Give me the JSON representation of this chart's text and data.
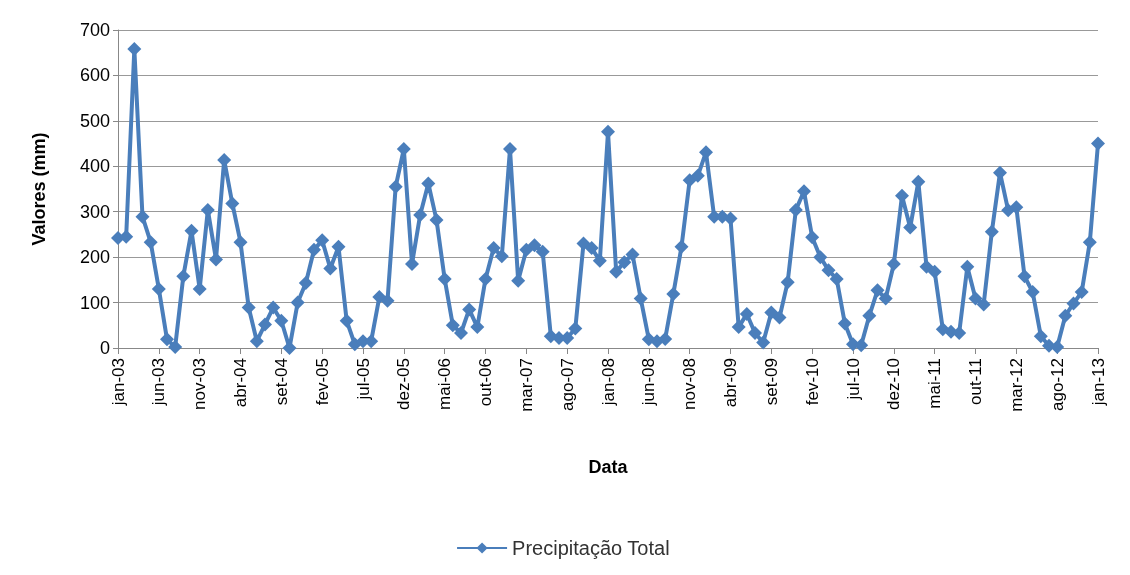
{
  "chart_data": {
    "type": "line",
    "xlabel": "Data",
    "ylabel": "Valores (mm)",
    "categories": [
      "jan-03",
      null,
      null,
      null,
      null,
      "jun-03",
      null,
      null,
      null,
      null,
      "nov-03",
      null,
      null,
      null,
      null,
      "abr-04",
      null,
      null,
      null,
      null,
      "set-04",
      null,
      null,
      null,
      null,
      "fev-05",
      null,
      null,
      null,
      null,
      "jul-05",
      null,
      null,
      null,
      null,
      "dez-05",
      null,
      null,
      null,
      null,
      "mai-06",
      null,
      null,
      null,
      null,
      "out-06",
      null,
      null,
      null,
      null,
      "mar-07",
      null,
      null,
      null,
      null,
      "ago-07",
      null,
      null,
      null,
      null,
      "jan-08",
      null,
      null,
      null,
      null,
      "jun-08",
      null,
      null,
      null,
      null,
      "nov-08",
      null,
      null,
      null,
      null,
      "abr-09",
      null,
      null,
      null,
      null,
      "set-09",
      null,
      null,
      null,
      null,
      "fev-10",
      null,
      null,
      null,
      null,
      "jul-10",
      null,
      null,
      null,
      null,
      "dez-10",
      null,
      null,
      null,
      null,
      "mai-11",
      null,
      null,
      null,
      null,
      "out-11",
      null,
      null,
      null,
      null,
      "mar-12",
      null,
      null,
      null,
      null,
      "ago-12",
      null,
      null,
      null,
      null,
      "jan-13"
    ],
    "series": [
      {
        "name": "Precipitação Total",
        "color": "#4a7ebb",
        "values": [
          242,
          245,
          658,
          289,
          233,
          130,
          19,
          2,
          158,
          258,
          130,
          304,
          195,
          414,
          318,
          233,
          89,
          15,
          52,
          89,
          60,
          0,
          100,
          143,
          216,
          237,
          175,
          223,
          60,
          8,
          15,
          15,
          112,
          104,
          355,
          438,
          185,
          293,
          362,
          282,
          152,
          50,
          33,
          85,
          46,
          152,
          220,
          202,
          438,
          148,
          216,
          226,
          212,
          26,
          22,
          22,
          43,
          230,
          220,
          192,
          476,
          168,
          189,
          206,
          109,
          19,
          15,
          20,
          119,
          223,
          369,
          379,
          431,
          289,
          289,
          285,
          46,
          75,
          33,
          12,
          78,
          67,
          145,
          304,
          345,
          244,
          200,
          171,
          152,
          54,
          8,
          6,
          71,
          127,
          109,
          185,
          335,
          265,
          366,
          179,
          168,
          41,
          36,
          33,
          179,
          109,
          96,
          256,
          386,
          303,
          310,
          158,
          123,
          26,
          5,
          2,
          71,
          98,
          123,
          233,
          450
        ]
      }
    ],
    "ylim": [
      0,
      700
    ],
    "yticks": [
      0,
      100,
      200,
      300,
      400,
      500,
      600,
      700
    ],
    "grid": "y",
    "legend": "bottom",
    "marker": "diamond",
    "line_style": "solid"
  }
}
